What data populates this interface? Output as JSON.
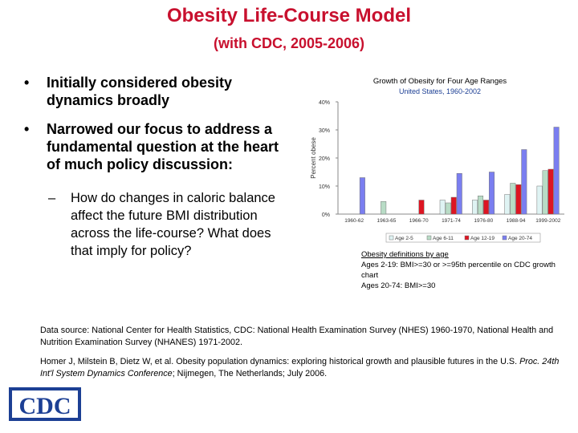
{
  "header": {
    "title": "Obesity Life-Course Model",
    "subtitle": "(with CDC, 2005-2006)"
  },
  "bullets": [
    {
      "marker": "•",
      "text": "Initially considered obesity dynamics broadly"
    },
    {
      "marker": "•",
      "text": "Narrowed our focus to address a fundamental question at the heart of much policy discussion:"
    }
  ],
  "sub_bullet": {
    "marker": "–",
    "text": "How do changes in caloric balance affect the future BMI distribution across the life-course? What does that imply for policy?"
  },
  "chart_data": {
    "type": "bar",
    "title": "Growth of Obesity for Four Age Ranges",
    "subtitle": "United States, 1960-2002",
    "ylabel": "Percent obese",
    "xlabel": "",
    "ylim": [
      0,
      40
    ],
    "yticks": [
      "0%",
      "10%",
      "20%",
      "30%",
      "40%"
    ],
    "categories": [
      "1960-62",
      "1963-65",
      "1966-70",
      "1971-74",
      "1976-80",
      "1988-94",
      "1999-2002"
    ],
    "series": [
      {
        "name": "Age 2-5",
        "color": "#dff3f3",
        "values": [
          null,
          null,
          null,
          5,
          5,
          7,
          10
        ]
      },
      {
        "name": "Age 6-11",
        "color": "#b8dcc6",
        "values": [
          null,
          4.5,
          null,
          4,
          6.5,
          11,
          15.5
        ]
      },
      {
        "name": "Age 12-19",
        "color": "#dd1522",
        "values": [
          null,
          null,
          5,
          6,
          5,
          10.5,
          16
        ]
      },
      {
        "name": "Age 20-74",
        "color": "#7a7ef0",
        "values": [
          13,
          null,
          null,
          14.5,
          15,
          23,
          31
        ]
      }
    ],
    "legend_position": "bottom",
    "grid": false
  },
  "definitions": {
    "heading": "Obesity definitions by age",
    "lines": [
      "Ages 2-19:  BMI>=30 or >=95th percentile on CDC growth chart",
      "Ages 20-74: BMI>=30"
    ]
  },
  "sources": {
    "line1": "Data source: National Center for Health Statistics, CDC:  National Health Examination Survey (NHES) 1960-1970, National Health and Nutrition Examination Survey (NHANES) 1971-2002.",
    "line2_pre": "Homer J, Milstein B, Dietz W, et al. Obesity population dynamics: exploring historical growth and plausible futures in the U.S. ",
    "line2_italic": "Proc. 24th Int'l System Dynamics Conference",
    "line2_post": "; Nijmegen, The Netherlands; July 2006."
  },
  "logo": {
    "text": "CDC",
    "color": "#1c3f94"
  }
}
